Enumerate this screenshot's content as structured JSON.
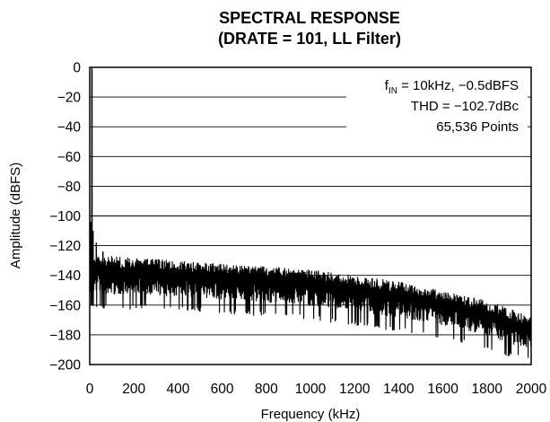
{
  "chart_data": {
    "type": "line",
    "title": "SPECTRAL RESPONSE",
    "subtitle": "(DRATE = 101, LL Filter)",
    "xlabel": "Frequency (kHz)",
    "ylabel": "Amplitude (dBFS)",
    "xlim": [
      0,
      2000
    ],
    "ylim": [
      -200,
      0
    ],
    "xticks": [
      "0",
      "200",
      "400",
      "600",
      "800",
      "1000",
      "1200",
      "1400",
      "1600",
      "1800",
      "2000"
    ],
    "yticks": [
      "0",
      "−20",
      "−40",
      "−60",
      "−80",
      "−100",
      "−120",
      "−140",
      "−160",
      "−180",
      "−200"
    ],
    "grid": "horizontal",
    "annotations": {
      "line1_prefix": "f",
      "line1_sub": "IN",
      "line1_rest": " = 10kHz, −0.5dBFS",
      "line2": "THD = −102.7dBc",
      "line3": "65,536 Points"
    },
    "series": [
      {
        "color": "#000000",
        "fundamental": {
          "x": 10,
          "y": -0.5
        },
        "noise_floor_envelope": {
          "x": [
            0,
            50,
            100,
            200,
            300,
            400,
            500,
            600,
            700,
            800,
            900,
            1000,
            1100,
            1200,
            1300,
            1400,
            1500,
            1600,
            1700,
            1800,
            1900,
            2000
          ],
          "y_top": [
            -128,
            -126,
            -127,
            -128,
            -129,
            -130,
            -131,
            -132,
            -133,
            -134,
            -135,
            -136,
            -138,
            -140,
            -142,
            -144,
            -147,
            -150,
            -153,
            -157,
            -162,
            -168
          ],
          "y_bottom": [
            -160,
            -162,
            -163,
            -163,
            -163,
            -164,
            -165,
            -166,
            -167,
            -168,
            -169,
            -170,
            -172,
            -174,
            -176,
            -178,
            -180,
            -183,
            -186,
            -190,
            -195,
            -198
          ]
        },
        "spurs": [
          {
            "x": 5,
            "y": -104
          },
          {
            "x": 15,
            "y": -110
          },
          {
            "x": 30,
            "y": -118
          },
          {
            "x": 60,
            "y": -124
          }
        ]
      }
    ]
  }
}
